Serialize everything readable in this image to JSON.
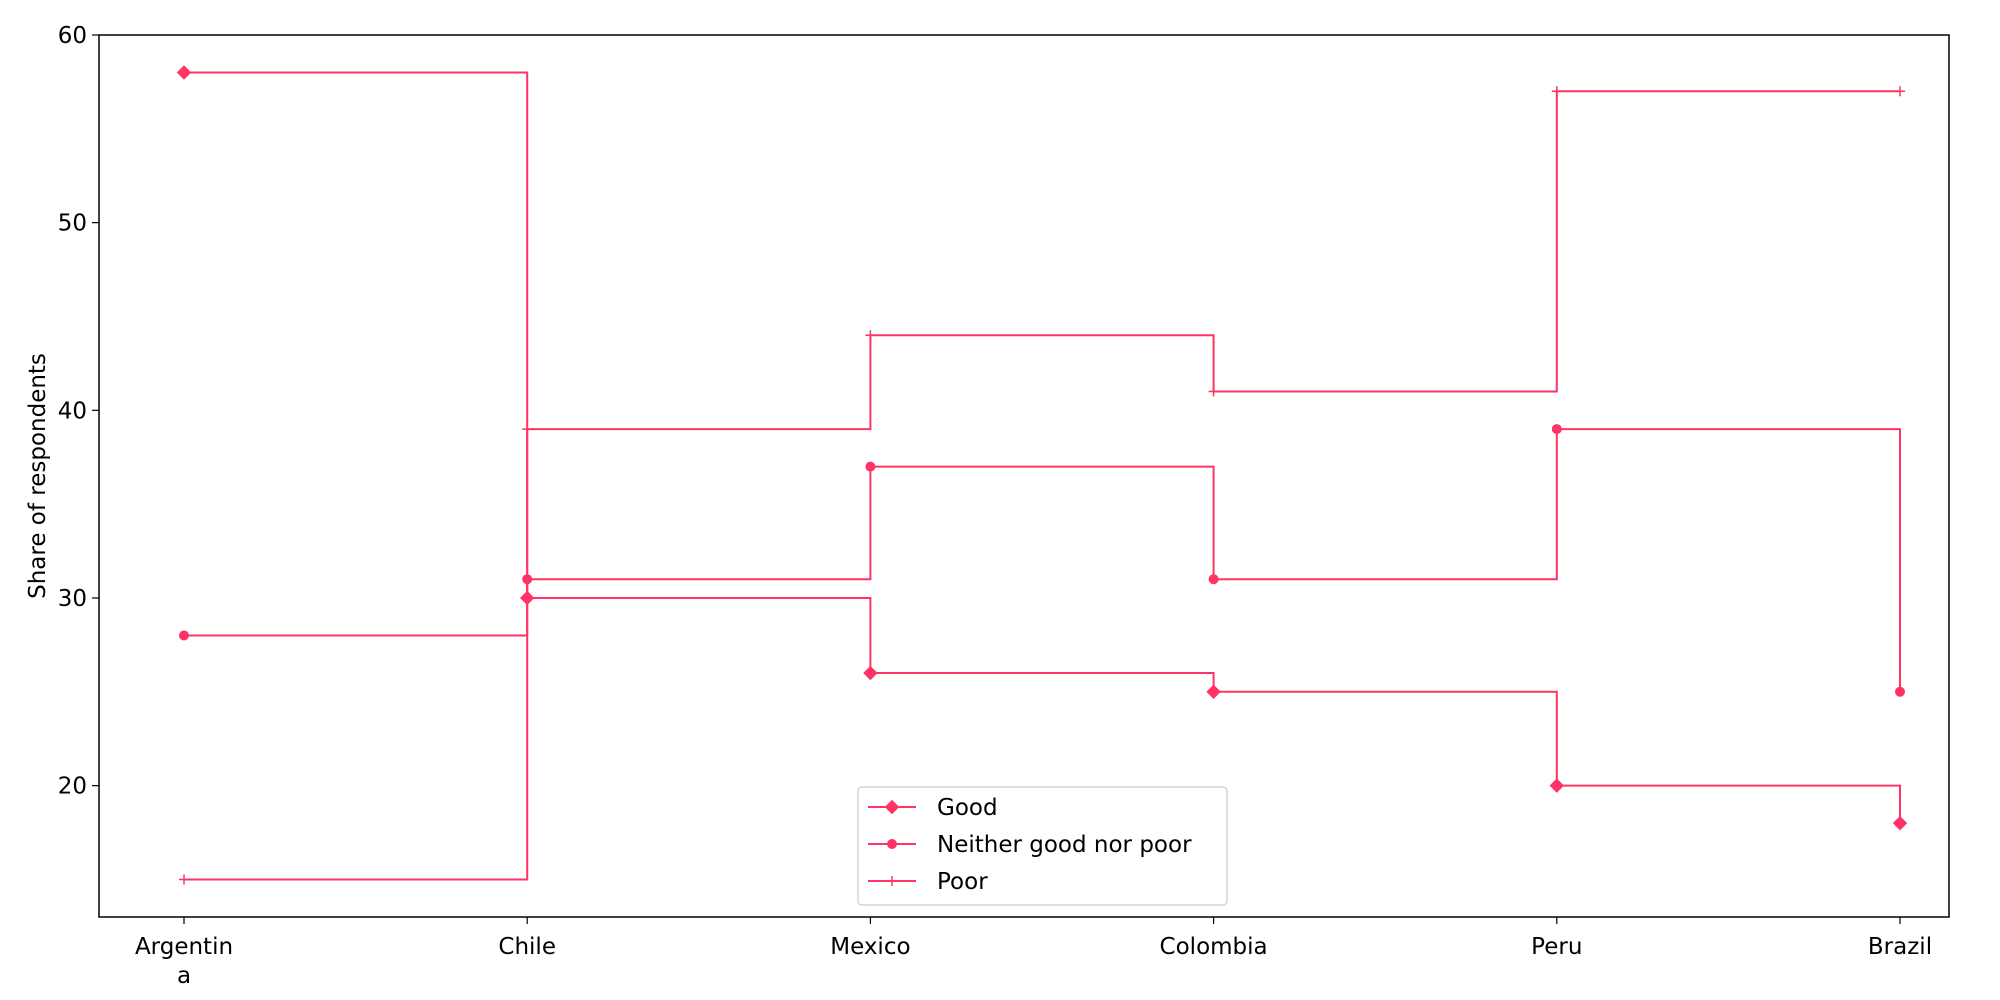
{
  "chart_data": {
    "type": "line",
    "step": "post",
    "categories": [
      "Argentina",
      "Chile",
      "Mexico",
      "Colombia",
      "Peru",
      "Brazil"
    ],
    "category_tick_labels": [
      [
        "Argentin",
        "a"
      ],
      [
        "Chile"
      ],
      [
        "Mexico"
      ],
      [
        "Colombia"
      ],
      [
        "Peru"
      ],
      [
        "Brazil"
      ]
    ],
    "series": [
      {
        "name": "Good",
        "values": [
          58,
          30,
          26,
          25,
          20,
          18
        ],
        "marker": "diamond"
      },
      {
        "name": "Neither good nor poor",
        "values": [
          28,
          31,
          37,
          31,
          39,
          25
        ],
        "marker": "circle"
      },
      {
        "name": "Poor",
        "values": [
          15,
          39,
          44,
          41,
          57,
          57
        ],
        "marker": "plus"
      }
    ],
    "xlabel": "",
    "ylabel": "Share of respondents",
    "ylim": [
      13,
      60
    ],
    "yticks": [
      20,
      30,
      40,
      50,
      60
    ],
    "grid": false,
    "legend_position": "bottom-center",
    "colors": {
      "series": "#ff3366",
      "axis": "#000000",
      "legend_border": "#cccccc",
      "background": "#ffffff"
    }
  }
}
